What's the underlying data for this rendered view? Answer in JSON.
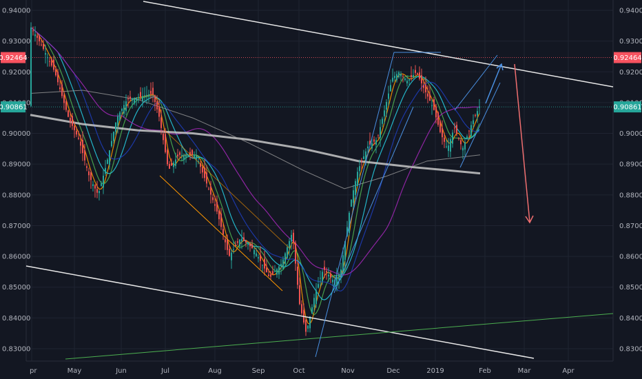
{
  "chart_data": {
    "type": "candlestick",
    "y_ticks": [
      "0.94000",
      "0.93000",
      "0.92000",
      "0.91000",
      "0.90000",
      "0.89000",
      "0.88000",
      "0.87000",
      "0.86000",
      "0.85000",
      "0.84000",
      "0.83000"
    ],
    "x_ticks": [
      "pr",
      "May",
      "Jun",
      "Jul",
      "Aug",
      "Sep",
      "Oct",
      "Nov",
      "Dec",
      "2019",
      "Feb",
      "Mar",
      "Apr"
    ],
    "ylim": [
      0.8255,
      0.9415
    ],
    "price_markers": [
      {
        "label": "0.92464",
        "value": 0.92464,
        "color": "#f7525f"
      },
      {
        "label": "0.90861",
        "value": 0.90861,
        "color": "#26a69a"
      }
    ],
    "candle_colors": {
      "up": "#26a69a",
      "down": "#ef5350"
    },
    "annotations": {
      "projection_up_arrow": "blue",
      "projection_down_arrow": "red",
      "trendlines": [
        "upper descending white line",
        "lower descending white line",
        "rising green support line"
      ]
    }
  }
}
